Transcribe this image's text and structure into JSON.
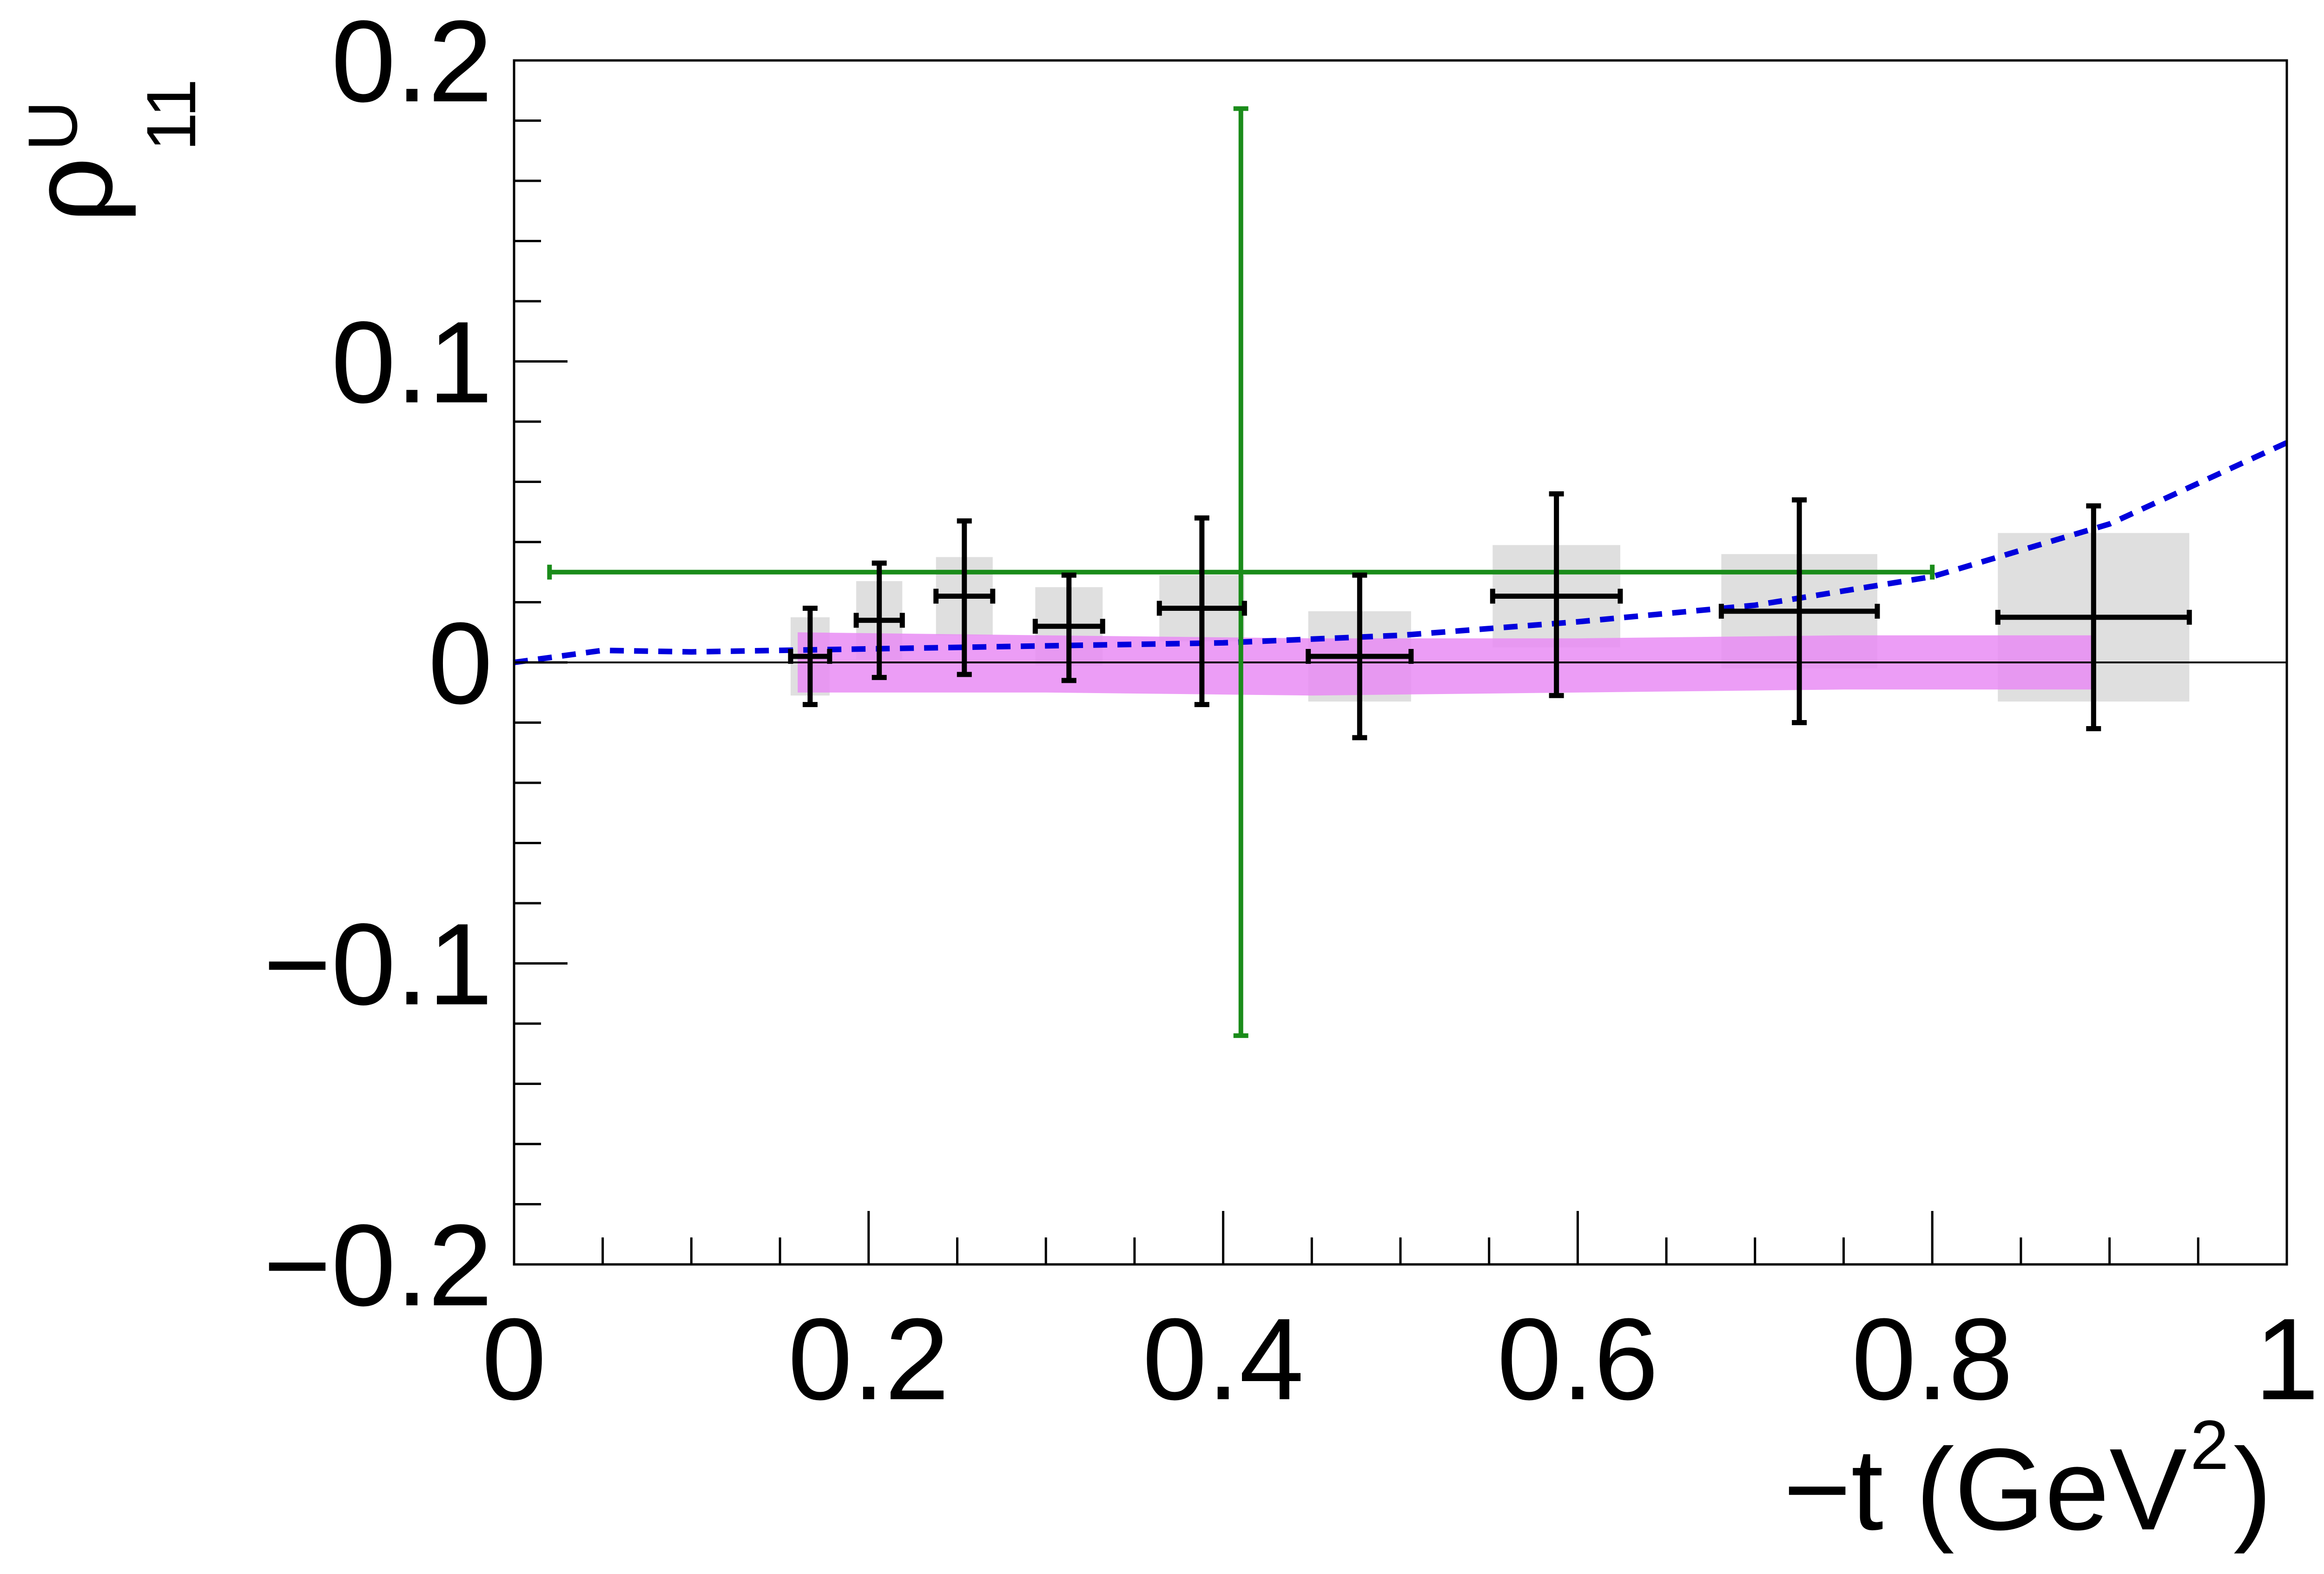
{
  "chart_data": {
    "type": "scatter",
    "title": "",
    "xlabel": "−t (GeV",
    "xlabel_sup": "2",
    "xlabel_close": ")",
    "ylabel": "ρ",
    "ylabel_sup": "U",
    "ylabel_sub": "11",
    "xlim": [
      0,
      1
    ],
    "ylim": [
      -0.2,
      0.2
    ],
    "x_ticks": [
      {
        "value": 0,
        "label": "0"
      },
      {
        "value": 0.2,
        "label": "0.2"
      },
      {
        "value": 0.4,
        "label": "0.4"
      },
      {
        "value": 0.6,
        "label": "0.6"
      },
      {
        "value": 0.8,
        "label": "0.8"
      },
      {
        "value": 1,
        "label": "1"
      }
    ],
    "y_ticks": [
      {
        "value": -0.2,
        "label": "−0.2"
      },
      {
        "value": -0.1,
        "label": "−0.1"
      },
      {
        "value": 0,
        "label": "0"
      },
      {
        "value": 0.1,
        "label": "0.1"
      },
      {
        "value": 0.2,
        "label": "0.2"
      }
    ],
    "grid": false,
    "zero_line": true,
    "colors": {
      "data": "#000000",
      "green": "#1a8c1a",
      "band": "#e98cf5",
      "syst_box": "#d9d9d9",
      "curve": "#0000dd"
    },
    "series": [
      {
        "style": "black-points",
        "points": [
          {
            "x": 0.167,
            "y": 0.002,
            "xerr": 0.011,
            "yerr_up": 0.016,
            "yerr_down": 0.016,
            "syst": 0.013,
            "syst_w": 0.011
          },
          {
            "x": 0.206,
            "y": 0.014,
            "xerr": 0.013,
            "yerr_up": 0.019,
            "yerr_down": 0.019,
            "syst": 0.013,
            "syst_w": 0.013
          },
          {
            "x": 0.254,
            "y": 0.022,
            "xerr": 0.016,
            "yerr_up": 0.025,
            "yerr_down": 0.026,
            "syst": 0.013,
            "syst_w": 0.016
          },
          {
            "x": 0.313,
            "y": 0.012,
            "xerr": 0.019,
            "yerr_up": 0.017,
            "yerr_down": 0.018,
            "syst": 0.013,
            "syst_w": 0.019
          },
          {
            "x": 0.388,
            "y": 0.018,
            "xerr": 0.024,
            "yerr_up": 0.03,
            "yerr_down": 0.032,
            "syst": 0.011,
            "syst_w": 0.024
          },
          {
            "x": 0.477,
            "y": 0.002,
            "xerr": 0.029,
            "yerr_up": 0.027,
            "yerr_down": 0.027,
            "syst": 0.015,
            "syst_w": 0.029
          },
          {
            "x": 0.588,
            "y": 0.022,
            "xerr": 0.036,
            "yerr_up": 0.034,
            "yerr_down": 0.033,
            "syst": 0.017,
            "syst_w": 0.036
          },
          {
            "x": 0.725,
            "y": 0.017,
            "xerr": 0.044,
            "yerr_up": 0.037,
            "yerr_down": 0.037,
            "syst": 0.019,
            "syst_w": 0.044
          },
          {
            "x": 0.891,
            "y": 0.015,
            "xerr": 0.054,
            "yerr_up": 0.037,
            "yerr_down": 0.037,
            "syst": 0.028,
            "syst_w": 0.054
          }
        ]
      },
      {
        "style": "green-point",
        "points": [
          {
            "x": 0.41,
            "y": 0.03,
            "xerr_left": 0.39,
            "xerr_right": 0.39,
            "yerr_up": 0.154,
            "yerr_down": 0.154
          }
        ]
      },
      {
        "style": "magenta-band",
        "points": [
          {
            "x": 0.16,
            "low": -0.01,
            "high": 0.01
          },
          {
            "x": 0.3,
            "low": -0.01,
            "high": 0.009
          },
          {
            "x": 0.45,
            "low": -0.011,
            "high": 0.008
          },
          {
            "x": 0.6,
            "low": -0.01,
            "high": 0.008
          },
          {
            "x": 0.75,
            "low": -0.009,
            "high": 0.009
          },
          {
            "x": 0.89,
            "low": -0.009,
            "high": 0.009
          }
        ]
      },
      {
        "style": "blue-dashed-curve",
        "points": [
          {
            "x": 0,
            "y": 0
          },
          {
            "x": 0.05,
            "y": 0.004
          },
          {
            "x": 0.1,
            "y": 0.0035
          },
          {
            "x": 0.2,
            "y": 0.0045
          },
          {
            "x": 0.3,
            "y": 0.0055
          },
          {
            "x": 0.4,
            "y": 0.0065
          },
          {
            "x": 0.5,
            "y": 0.009
          },
          {
            "x": 0.6,
            "y": 0.0135
          },
          {
            "x": 0.7,
            "y": 0.019
          },
          {
            "x": 0.8,
            "y": 0.0285
          },
          {
            "x": 0.9,
            "y": 0.046
          },
          {
            "x": 1,
            "y": 0.073
          }
        ]
      }
    ]
  }
}
